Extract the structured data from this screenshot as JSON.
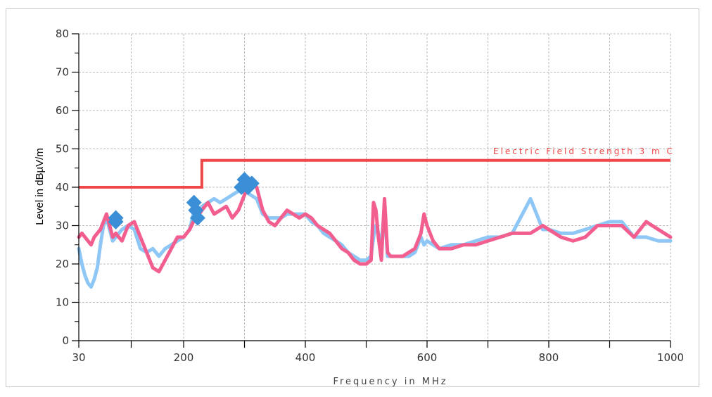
{
  "colors": {
    "peak_trace": "#8ec7f5",
    "average_trace": "#f25f8e",
    "limit_line": "#f04848",
    "markers": "#3a8fd6",
    "grid": "#bdbdbd",
    "axis": "#000000"
  },
  "chart_data": {
    "type": "line",
    "title": "",
    "xlabel": "Frequency in MHz",
    "ylabel": "Level in dBµV/m",
    "xlim": [
      30,
      1000
    ],
    "ylim": [
      0,
      80
    ],
    "x_ticks": [
      30,
      200,
      400,
      600,
      800,
      1000
    ],
    "x_tick_labels": [
      "30",
      "200",
      "400",
      "600",
      "800",
      "1000"
    ],
    "y_ticks": [
      0,
      10,
      20,
      30,
      40,
      50,
      60,
      70,
      80
    ],
    "y_tick_labels": [
      "0",
      "10",
      "20",
      "30",
      "40",
      "50",
      "60",
      "70",
      "80"
    ],
    "grid": true,
    "limit_line": {
      "name": "Electric Field Strength 3 m C",
      "x": [
        30,
        230,
        230,
        1000
      ],
      "y": [
        40,
        40,
        47,
        47
      ]
    },
    "series": [
      {
        "x": [
          30,
          35,
          40,
          45,
          50,
          55,
          60,
          65,
          70,
          75,
          80,
          85,
          90,
          95,
          100,
          110,
          120,
          130,
          140,
          150,
          160,
          170,
          180,
          190,
          200,
          210,
          216,
          222,
          230,
          240,
          250,
          260,
          270,
          280,
          290,
          300,
          310,
          320,
          330,
          340,
          350,
          360,
          370,
          380,
          390,
          400,
          410,
          420,
          430,
          440,
          450,
          460,
          470,
          480,
          490,
          500,
          508,
          512,
          516,
          520,
          525,
          530,
          535,
          540,
          550,
          560,
          570,
          580,
          590,
          595,
          600,
          610,
          620,
          640,
          660,
          680,
          700,
          720,
          740,
          760,
          770,
          780,
          790,
          800,
          820,
          840,
          860,
          880,
          900,
          920,
          940,
          960,
          980,
          1000
        ],
        "values": [
          24,
          20,
          17,
          15,
          14,
          16,
          19,
          25,
          30,
          32,
          29,
          26,
          27,
          28,
          29,
          30,
          29,
          24,
          23,
          24,
          22,
          24,
          25,
          26,
          27,
          29,
          33,
          32,
          35,
          36,
          37,
          36,
          37,
          38,
          39,
          39,
          38,
          37,
          33,
          32,
          32,
          32,
          33,
          33,
          33,
          33,
          31,
          30,
          28,
          27,
          26,
          25,
          23,
          22,
          21,
          21,
          22,
          27,
          30,
          28,
          25,
          35,
          22,
          22,
          22,
          22,
          22,
          23,
          27,
          25,
          26,
          25,
          24,
          25,
          25,
          26,
          27,
          27,
          28,
          34,
          37,
          33,
          29,
          29,
          28,
          28,
          29,
          30,
          31,
          31,
          27,
          27,
          26,
          26
        ]
      },
      {
        "x": [
          30,
          35,
          40,
          45,
          50,
          55,
          60,
          65,
          70,
          75,
          80,
          85,
          90,
          95,
          100,
          110,
          120,
          130,
          140,
          150,
          160,
          170,
          180,
          190,
          200,
          210,
          216,
          222,
          230,
          240,
          250,
          260,
          270,
          280,
          290,
          300,
          310,
          320,
          330,
          340,
          350,
          360,
          370,
          380,
          390,
          400,
          410,
          420,
          430,
          440,
          450,
          460,
          470,
          480,
          490,
          500,
          508,
          512,
          516,
          520,
          525,
          530,
          535,
          540,
          550,
          560,
          570,
          580,
          590,
          595,
          600,
          610,
          620,
          640,
          660,
          680,
          700,
          720,
          740,
          760,
          770,
          780,
          790,
          800,
          820,
          840,
          860,
          880,
          900,
          920,
          940,
          960,
          980,
          1000
        ],
        "values": [
          27,
          28,
          27,
          26,
          25,
          27,
          28,
          29,
          31,
          33,
          30,
          27,
          28,
          27,
          26,
          30,
          31,
          27,
          23,
          19,
          18,
          21,
          24,
          27,
          27,
          29,
          31,
          32,
          34,
          36,
          33,
          34,
          35,
          32,
          34,
          38,
          42,
          40,
          34,
          31,
          30,
          32,
          34,
          33,
          32,
          33,
          32,
          30,
          29,
          28,
          26,
          24,
          23,
          21,
          20,
          20,
          21,
          36,
          34,
          27,
          21,
          37,
          23,
          22,
          22,
          22,
          23,
          24,
          28,
          33,
          30,
          26,
          24,
          24,
          25,
          25,
          26,
          27,
          28,
          28,
          28,
          29,
          30,
          29,
          27,
          26,
          27,
          30,
          30,
          30,
          27,
          31,
          29,
          27
        ]
      }
    ],
    "markers": {
      "x": [
        90,
        90,
        217,
        220,
        223,
        295,
        300,
        306,
        312
      ],
      "values": [
        32,
        31,
        36,
        34,
        32,
        40,
        42,
        40,
        41
      ]
    }
  }
}
